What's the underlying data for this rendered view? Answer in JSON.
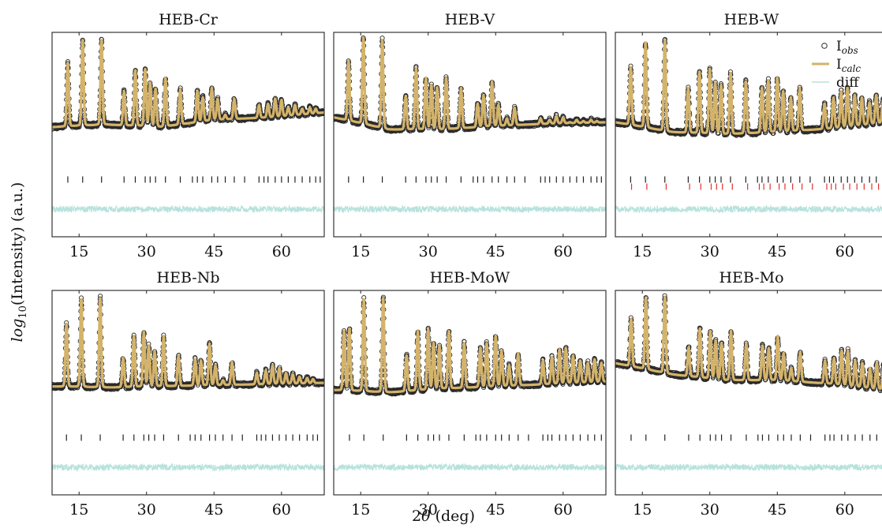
{
  "figure": {
    "ylabel_main": "log",
    "ylabel_sub": "10",
    "ylabel_rest": "(Intensity) (a.u.)",
    "xlabel_pre": "2",
    "xlabel_theta": "θ",
    "xlabel_post": " (deg)"
  },
  "legend": {
    "items": [
      {
        "key": "obs",
        "main": "I",
        "sub": "obs"
      },
      {
        "key": "calc",
        "main": "I",
        "sub": "calc"
      },
      {
        "key": "diff",
        "main": "diff",
        "sub": ""
      }
    ]
  },
  "colors": {
    "observed": "#2a2a2a",
    "calculated": "#d4b36a",
    "difference": "#b7e2dc",
    "ticks_primary": "#222222",
    "ticks_secondary": "#e03030"
  },
  "chart_data": [
    {
      "type": "line",
      "title": "HEB-Cr",
      "xlim": [
        9,
        69.5
      ],
      "xticks": [
        15,
        30,
        45,
        60
      ],
      "baseline": 0.26,
      "baseline_trend": [
        0.26,
        0.28,
        0.26,
        0.32,
        0.34,
        0.38
      ],
      "peaks": [
        [
          12.5,
          0.78
        ],
        [
          15.8,
          0.97
        ],
        [
          20,
          0.97
        ],
        [
          25,
          0.55
        ],
        [
          27.5,
          0.72
        ],
        [
          29.7,
          0.73
        ],
        [
          30.8,
          0.62
        ],
        [
          32,
          0.57
        ],
        [
          34.2,
          0.66
        ],
        [
          37.5,
          0.57
        ],
        [
          41.3,
          0.55
        ],
        [
          42.5,
          0.5
        ],
        [
          44.5,
          0.58
        ],
        [
          45.8,
          0.49
        ],
        [
          47.5,
          0.36
        ],
        [
          49.5,
          0.49
        ],
        [
          55,
          0.44
        ],
        [
          57,
          0.45
        ],
        [
          58.6,
          0.49
        ],
        [
          60,
          0.48
        ],
        [
          61.5,
          0.42
        ],
        [
          63,
          0.44
        ],
        [
          64.6,
          0.41
        ],
        [
          66.3,
          0.42
        ],
        [
          67.6,
          0.41
        ]
      ],
      "phase_ticks": [
        [
          12.5,
          15.8,
          20,
          25,
          27.5,
          29.7,
          30.8,
          32,
          34.2,
          37.5,
          40.2,
          41.3,
          42.5,
          44.5,
          45.8,
          47.5,
          49.5,
          51.8,
          55,
          56.1,
          57,
          58.6,
          60,
          61.5,
          63,
          64.6,
          66.3,
          67.6,
          68.6
        ]
      ]
    },
    {
      "type": "line",
      "title": "HEB-V",
      "xlim": [
        9,
        69.5
      ],
      "xticks": [
        15,
        30,
        45,
        60
      ],
      "baseline": 0.3,
      "baseline_trend": [
        0.34,
        0.24,
        0.24,
        0.27,
        0.29,
        0.3
      ],
      "peaks": [
        [
          12.3,
          0.8
        ],
        [
          15.6,
          0.99
        ],
        [
          19.8,
          0.97
        ],
        [
          25,
          0.51
        ],
        [
          27.3,
          0.74
        ],
        [
          29.5,
          0.66
        ],
        [
          30.7,
          0.6
        ],
        [
          32,
          0.58
        ],
        [
          34,
          0.66
        ],
        [
          37.3,
          0.58
        ],
        [
          41,
          0.45
        ],
        [
          42.3,
          0.52
        ],
        [
          44.2,
          0.63
        ],
        [
          45.6,
          0.44
        ],
        [
          47.5,
          0.33
        ],
        [
          49.2,
          0.42
        ],
        [
          55,
          0.33
        ],
        [
          57,
          0.32
        ],
        [
          58.5,
          0.35
        ],
        [
          60,
          0.34
        ],
        [
          61.5,
          0.3
        ],
        [
          63,
          0.32
        ],
        [
          64.5,
          0.31
        ],
        [
          66.2,
          0.32
        ],
        [
          67.5,
          0.31
        ]
      ],
      "phase_ticks": [
        [
          12.3,
          15.6,
          19.8,
          25,
          27.3,
          29.5,
          30.7,
          32,
          34,
          37.3,
          40,
          41,
          42.3,
          44.2,
          45.6,
          47.5,
          49.2,
          51.5,
          55,
          56,
          57,
          58.5,
          60,
          61.5,
          63,
          64.5,
          66.2,
          67.5,
          68.5
        ]
      ]
    },
    {
      "type": "line",
      "title": "HEB-W",
      "xlim": [
        9,
        69.5
      ],
      "xticks": [
        15,
        30,
        45,
        60
      ],
      "baseline": 0.28,
      "baseline_trend": [
        0.3,
        0.22,
        0.2,
        0.22,
        0.25,
        0.3
      ],
      "peaks": [
        [
          12.4,
          0.75
        ],
        [
          15.7,
          0.95
        ],
        [
          20,
          0.97
        ],
        [
          25.2,
          0.58
        ],
        [
          27.7,
          0.71
        ],
        [
          30,
          0.73
        ],
        [
          31.2,
          0.62
        ],
        [
          32.5,
          0.6
        ],
        [
          34.6,
          0.7
        ],
        [
          38,
          0.63
        ],
        [
          41.6,
          0.58
        ],
        [
          43,
          0.64
        ],
        [
          45,
          0.66
        ],
        [
          46.3,
          0.55
        ],
        [
          48,
          0.5
        ],
        [
          50,
          0.58
        ],
        [
          55.5,
          0.45
        ],
        [
          57.5,
          0.5
        ],
        [
          59.2,
          0.55
        ],
        [
          60.6,
          0.58
        ],
        [
          62.2,
          0.52
        ],
        [
          63.8,
          0.5
        ],
        [
          65.5,
          0.46
        ],
        [
          67,
          0.52
        ],
        [
          68.5,
          0.48
        ]
      ],
      "phase_ticks": [
        [
          12.4,
          15.7,
          20,
          25.2,
          27.7,
          30,
          31.2,
          32.5,
          34.6,
          38,
          40.6,
          41.6,
          43,
          45,
          46.3,
          48,
          50,
          52.3,
          55.5,
          56.6,
          57.5,
          59.2,
          60.6,
          62.2,
          63.8,
          65.5,
          67,
          68.5
        ],
        [
          12.6,
          16,
          20.3,
          25.5,
          28,
          30.3,
          31.5,
          32.8,
          35,
          38.4,
          41,
          42,
          43.4,
          45.4,
          46.7,
          48.4,
          50.5,
          52.8,
          56,
          57,
          58,
          59.7,
          61.1,
          62.7,
          64.3,
          66,
          67.5,
          69
        ]
      ]
    },
    {
      "type": "line",
      "title": "HEB-Nb",
      "xlim": [
        9,
        69.5
      ],
      "xticks": [
        15,
        30,
        45,
        60
      ],
      "baseline": 0.25,
      "baseline_trend": [
        0.25,
        0.24,
        0.25,
        0.26,
        0.27,
        0.28
      ],
      "peaks": [
        [
          12.2,
          0.76
        ],
        [
          15.5,
          0.96
        ],
        [
          19.7,
          0.97
        ],
        [
          24.8,
          0.48
        ],
        [
          27.2,
          0.66
        ],
        [
          29.4,
          0.69
        ],
        [
          30.5,
          0.58
        ],
        [
          31.8,
          0.53
        ],
        [
          33.8,
          0.66
        ],
        [
          37.1,
          0.5
        ],
        [
          40.8,
          0.47
        ],
        [
          42.1,
          0.46
        ],
        [
          44,
          0.6
        ],
        [
          45.3,
          0.42
        ],
        [
          47,
          0.3
        ],
        [
          49,
          0.45
        ],
        [
          54.5,
          0.36
        ],
        [
          56.5,
          0.38
        ],
        [
          58,
          0.42
        ],
        [
          59.5,
          0.4
        ],
        [
          61,
          0.36
        ],
        [
          62.5,
          0.35
        ],
        [
          64,
          0.33
        ],
        [
          65.7,
          0.32
        ],
        [
          67,
          0.31
        ]
      ],
      "phase_ticks": [
        [
          12.2,
          15.5,
          19.7,
          24.8,
          27.2,
          29.4,
          30.5,
          31.8,
          33.8,
          37.1,
          39.7,
          40.8,
          42.1,
          44,
          45.3,
          47,
          49,
          51.3,
          54.5,
          55.5,
          56.5,
          58,
          59.5,
          61,
          62.5,
          64,
          65.7,
          67,
          68
        ]
      ]
    },
    {
      "type": "line",
      "title": "HEB-MoW",
      "xlim": [
        9,
        69.5
      ],
      "xticks": [
        15,
        30,
        45,
        60
      ],
      "baseline": 0.22,
      "baseline_trend": [
        0.22,
        0.2,
        0.23,
        0.25,
        0.27,
        0.29
      ],
      "peaks": [
        [
          11.3,
          0.7
        ],
        [
          12.5,
          0.72
        ],
        [
          15.7,
          0.96
        ],
        [
          20,
          0.97
        ],
        [
          25.2,
          0.5
        ],
        [
          27.7,
          0.7
        ],
        [
          30,
          0.71
        ],
        [
          31.2,
          0.6
        ],
        [
          32.5,
          0.58
        ],
        [
          34.6,
          0.7
        ],
        [
          38,
          0.6
        ],
        [
          41.6,
          0.56
        ],
        [
          43,
          0.6
        ],
        [
          45,
          0.66
        ],
        [
          46.3,
          0.54
        ],
        [
          48,
          0.42
        ],
        [
          50,
          0.52
        ],
        [
          55.5,
          0.46
        ],
        [
          57.5,
          0.49
        ],
        [
          59.2,
          0.55
        ],
        [
          60.6,
          0.56
        ],
        [
          62.2,
          0.5
        ],
        [
          63.8,
          0.46
        ],
        [
          65.5,
          0.44
        ],
        [
          67,
          0.47
        ],
        [
          68.5,
          0.44
        ]
      ],
      "phase_ticks": [
        [
          12.5,
          15.7,
          20,
          25.2,
          27.7,
          30,
          31.2,
          32.5,
          34.6,
          38,
          40.6,
          41.6,
          43,
          45,
          46.3,
          48,
          50,
          52.3,
          55.5,
          56.6,
          57.5,
          59.2,
          60.6,
          62.2,
          63.8,
          65.5,
          67,
          68.5
        ]
      ]
    },
    {
      "type": "line",
      "title": "HEB-Mo",
      "xlim": [
        9,
        69.5
      ],
      "xticks": [
        15,
        30,
        45,
        60
      ],
      "baseline": 0.4,
      "baseline_trend": [
        0.44,
        0.35,
        0.3,
        0.3,
        0.27,
        0.22
      ],
      "peaks": [
        [
          12.5,
          0.8
        ],
        [
          15.8,
          0.97
        ],
        [
          20,
          0.98
        ],
        [
          25.3,
          0.57
        ],
        [
          27.8,
          0.72
        ],
        [
          30.1,
          0.7
        ],
        [
          31.3,
          0.62
        ],
        [
          32.6,
          0.6
        ],
        [
          34.7,
          0.7
        ],
        [
          38.1,
          0.6
        ],
        [
          41.7,
          0.58
        ],
        [
          43.1,
          0.56
        ],
        [
          45.1,
          0.66
        ],
        [
          46.4,
          0.52
        ],
        [
          48.1,
          0.4
        ],
        [
          50.1,
          0.53
        ],
        [
          55.6,
          0.46
        ],
        [
          57.6,
          0.48
        ],
        [
          59.3,
          0.54
        ],
        [
          60.7,
          0.54
        ],
        [
          62.3,
          0.46
        ],
        [
          63.9,
          0.44
        ],
        [
          65.6,
          0.4
        ],
        [
          67.1,
          0.44
        ],
        [
          68.6,
          0.42
        ]
      ],
      "phase_ticks": [
        [
          12.5,
          15.8,
          20,
          25.3,
          27.8,
          30.1,
          31.3,
          32.6,
          34.7,
          38.1,
          40.7,
          41.7,
          43.1,
          45.1,
          46.4,
          48.1,
          50.1,
          52.4,
          55.6,
          56.7,
          57.6,
          59.3,
          60.7,
          62.3,
          63.9,
          65.6,
          67.1,
          68.6
        ]
      ]
    }
  ]
}
